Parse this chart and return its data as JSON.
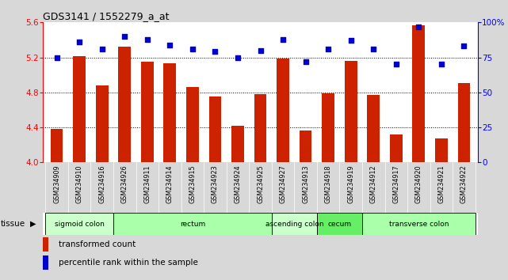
{
  "title": "GDS3141 / 1552279_a_at",
  "samples": [
    "GSM234909",
    "GSM234910",
    "GSM234916",
    "GSM234926",
    "GSM234911",
    "GSM234914",
    "GSM234915",
    "GSM234923",
    "GSM234924",
    "GSM234925",
    "GSM234927",
    "GSM234913",
    "GSM234918",
    "GSM234919",
    "GSM234912",
    "GSM234917",
    "GSM234920",
    "GSM234921",
    "GSM234922"
  ],
  "bar_values": [
    4.38,
    5.21,
    4.88,
    5.32,
    5.15,
    5.13,
    4.86,
    4.75,
    4.42,
    4.78,
    5.19,
    4.36,
    4.79,
    5.16,
    4.77,
    4.32,
    5.57,
    4.27,
    4.91
  ],
  "percentile_values": [
    75,
    86,
    81,
    90,
    88,
    84,
    81,
    79,
    75,
    80,
    88,
    72,
    81,
    87,
    81,
    70,
    97,
    70,
    83
  ],
  "ylim_left": [
    4.0,
    5.6
  ],
  "ylim_right": [
    0,
    100
  ],
  "yticks_left": [
    4.0,
    4.4,
    4.8,
    5.2,
    5.6
  ],
  "yticks_right": [
    0,
    25,
    50,
    75,
    100
  ],
  "ytick_labels_right": [
    "0",
    "25",
    "50",
    "75",
    "100%"
  ],
  "hlines": [
    4.4,
    4.8,
    5.2
  ],
  "bar_color": "#cc2200",
  "dot_color": "#0000cc",
  "bar_bottom": 4.0,
  "tissue_groups": [
    {
      "label": "sigmoid colon",
      "start": 0,
      "end": 3,
      "color": "#ccffcc"
    },
    {
      "label": "rectum",
      "start": 3,
      "end": 10,
      "color": "#aaffaa"
    },
    {
      "label": "ascending colon",
      "start": 10,
      "end": 12,
      "color": "#ccffcc"
    },
    {
      "label": "cecum",
      "start": 12,
      "end": 14,
      "color": "#66ee66"
    },
    {
      "label": "transverse colon",
      "start": 14,
      "end": 19,
      "color": "#aaffaa"
    }
  ],
  "legend_bar_label": "transformed count",
  "legend_dot_label": "percentile rank within the sample",
  "tissue_label": "tissue",
  "fig_bg_color": "#d8d8d8",
  "plot_bg_color": "#ffffff",
  "xtick_bg_color": "#c8c8c8"
}
